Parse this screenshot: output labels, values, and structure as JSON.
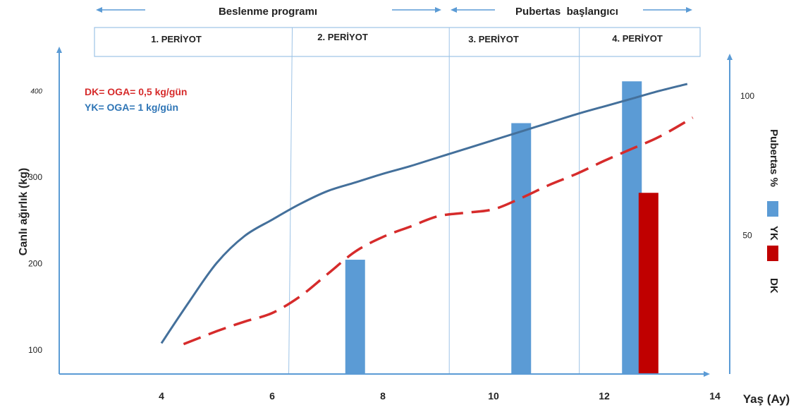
{
  "header": {
    "program_label": "Beslenme programı",
    "puberty_label": "Pubertas  başlangıcı",
    "periods": [
      "1. PERİYOT",
      "2. PERİYOT",
      "3. PERİYOT",
      "4. PERİYOT"
    ]
  },
  "legend": {
    "dk_line": "DK= OGA= 0,5 kg/gün",
    "yk_line": "YK= OGA= 1 kg/gün",
    "yk_label": "YK",
    "dk_label": "DK"
  },
  "colors": {
    "axis": "#5b9bd5",
    "yk_curve": "#44709b",
    "dk_curve": "#d62b2b",
    "yk_bar": "#5b9bd5",
    "dk_bar": "#c00000",
    "legend_dk": "#d62b2b",
    "legend_yk": "#2e75b6"
  },
  "chart_data": {
    "type": "line",
    "xlabel": "Yaş (Ay)",
    "ylabel": "Canlı ağırlık (kg)",
    "y2label": "Pubertas %",
    "x_ticks": [
      4,
      6,
      8,
      10,
      12,
      14
    ],
    "y_ticks": [
      100,
      200,
      300,
      400
    ],
    "y2_ticks": [
      50,
      100
    ],
    "xlim": [
      2,
      14.2
    ],
    "ylim": [
      70,
      440
    ],
    "y2lim": [
      0,
      108
    ],
    "period_boundaries": [
      6.3,
      9.2,
      11.55
    ],
    "series": [
      {
        "name": "YK",
        "style": "solid",
        "x": [
          4,
          4.5,
          5,
          5.5,
          6,
          6.5,
          7,
          7.5,
          8,
          8.5,
          9,
          9.5,
          10,
          10.5,
          11,
          11.5,
          12,
          12.5,
          13,
          13.5
        ],
        "y": [
          107,
          155,
          200,
          231,
          250,
          268,
          283,
          293,
          303,
          312,
          322,
          332,
          342,
          352,
          362,
          372,
          381,
          390,
          399,
          407
        ]
      },
      {
        "name": "DK",
        "style": "dashed",
        "x": [
          4.4,
          5,
          5.5,
          6,
          6.5,
          7,
          7.5,
          8,
          8.5,
          9,
          9.5,
          10,
          10.5,
          11,
          11.5,
          12,
          12.5,
          13,
          13.6
        ],
        "y": [
          106,
          121,
          132,
          142,
          161,
          187,
          213,
          230,
          242,
          254,
          258,
          262,
          275,
          290,
          303,
          318,
          332,
          346,
          368
        ]
      }
    ],
    "bars": [
      {
        "name": "YK",
        "x": 7.5,
        "value": 41
      },
      {
        "name": "YK",
        "x": 10.5,
        "value": 90
      },
      {
        "name": "YK",
        "x": 12.5,
        "value": 105
      },
      {
        "name": "DK",
        "x": 12.8,
        "value": 65
      }
    ]
  }
}
